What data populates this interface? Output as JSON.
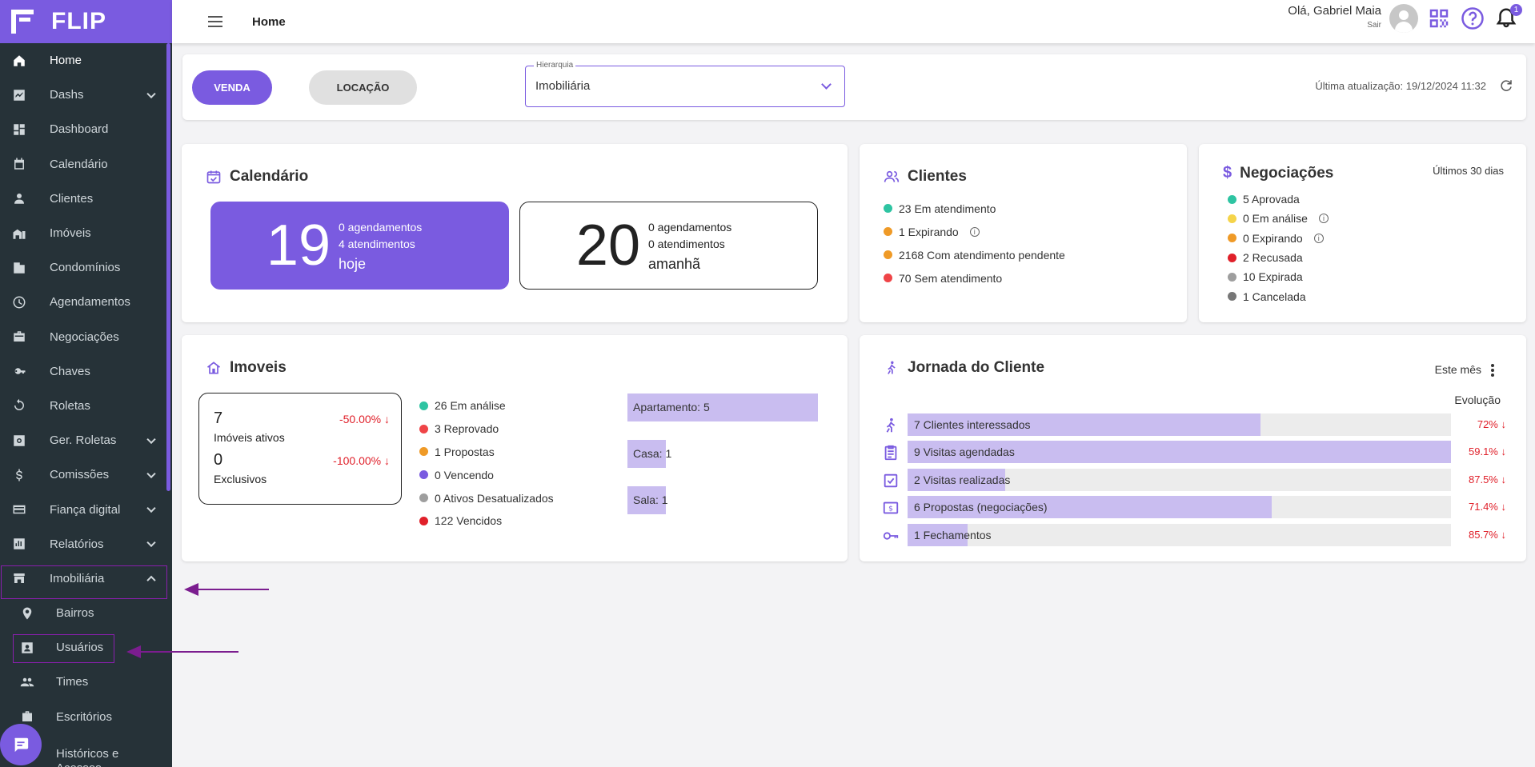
{
  "app": {
    "name": "FLIP"
  },
  "sidebar": {
    "items": [
      {
        "label": "Home",
        "icon": "home-icon"
      },
      {
        "label": "Dashs",
        "icon": "chart-icon"
      },
      {
        "label": "Dashboard",
        "icon": "dashboard-icon"
      },
      {
        "label": "Calendário",
        "icon": "calendar-icon"
      },
      {
        "label": "Clientes",
        "icon": "person-icon"
      },
      {
        "label": "Imóveis",
        "icon": "buildings-icon"
      },
      {
        "label": "Condomínios",
        "icon": "condo-icon"
      },
      {
        "label": "Agendamentos",
        "icon": "clock-icon"
      },
      {
        "label": "Negociações",
        "icon": "briefcase-icon"
      },
      {
        "label": "Chaves",
        "icon": "key-icon"
      },
      {
        "label": "Roletas",
        "icon": "cycle-icon"
      },
      {
        "label": "Ger. Roletas",
        "icon": "settings-box-icon"
      },
      {
        "label": "Comissões",
        "icon": "dollar-icon"
      },
      {
        "label": "Fiança digital",
        "icon": "card-icon"
      },
      {
        "label": "Relatórios",
        "icon": "report-icon"
      },
      {
        "label": "Imobiliária",
        "icon": "store-icon"
      },
      {
        "label": "Bairros",
        "icon": "pin-icon"
      },
      {
        "label": "Usuários",
        "icon": "contact-card-icon"
      },
      {
        "label": "Times",
        "icon": "group-icon"
      },
      {
        "label": "Escritórios",
        "icon": "bag-icon"
      },
      {
        "label": "Históricos e Acessos",
        "icon": "history-icon"
      }
    ]
  },
  "topbar": {
    "title": "Home",
    "greeting": "Olá, Gabriel Maia",
    "logout": "Sair",
    "notifications_count": "1"
  },
  "filter": {
    "venda": "VENDA",
    "locacao": "LOCAÇÃO",
    "hierarchy_label": "Hierarquia",
    "hierarchy_value": "Imobiliária",
    "last_update": "Última atualização: 19/12/2024 11:32"
  },
  "calendar": {
    "title": "Calendário",
    "today": {
      "day": "19",
      "appointments": "0 agendamentos",
      "services": "4 atendimentos",
      "when": "hoje"
    },
    "tomorrow": {
      "day": "20",
      "appointments": "0 agendamentos",
      "services": "0 atendimentos",
      "when": "amanhã"
    }
  },
  "clients": {
    "title": "Clientes",
    "items": [
      {
        "label": "23 Em atendimento",
        "color": "#2ec4a2"
      },
      {
        "label": "1 Expirando",
        "color": "#ef9a27"
      },
      {
        "label": "2168 Com atendimento pendente",
        "color": "#ef9a27"
      },
      {
        "label": "70 Sem atendimento",
        "color": "#ef4447"
      }
    ]
  },
  "negotiations": {
    "title": "Negociações",
    "period": "Últimos 30 dias",
    "items": [
      {
        "label": "5 Aprovada",
        "color": "#2ec4a2"
      },
      {
        "label": "0 Em análise",
        "color": "#f5d44a"
      },
      {
        "label": "0 Expirando",
        "color": "#ef9a27"
      },
      {
        "label": "2 Recusada",
        "color": "#e0202a"
      },
      {
        "label": "10 Expirada",
        "color": "#9e9e9e"
      },
      {
        "label": "1 Cancelada",
        "color": "#777777"
      }
    ]
  },
  "properties": {
    "title": "Imoveis",
    "active": {
      "value": "7",
      "label": "Imóveis ativos",
      "change": "-50.00%"
    },
    "exclusive": {
      "value": "0",
      "label": "Exclusivos",
      "change": "-100.00%"
    },
    "status": [
      {
        "label": "26 Em análise",
        "color": "#2ec4a2"
      },
      {
        "label": "3 Reprovado",
        "color": "#ef4447"
      },
      {
        "label": "1 Propostas",
        "color": "#ef9a27"
      },
      {
        "label": "0 Vencendo",
        "color": "#7a5be0"
      },
      {
        "label": "0 Ativos Desatualizados",
        "color": "#9e9e9e"
      },
      {
        "label": "122 Vencidos",
        "color": "#e0202a"
      }
    ],
    "types": [
      {
        "label": "Apartamento: 5",
        "value": 5
      },
      {
        "label": "Casa: 1",
        "value": 1
      },
      {
        "label": "Sala: 1",
        "value": 1
      }
    ]
  },
  "journey": {
    "title": "Jornada do Cliente",
    "period": "Este mês",
    "evolution_label": "Evolução",
    "rows": [
      {
        "label": "7 Clientes interessados",
        "pct": "72%",
        "fill": 0.65,
        "icon": "walker-icon"
      },
      {
        "label": "9 Visitas agendadas",
        "pct": "59.1%",
        "fill": 1.0,
        "icon": "clipboard-icon"
      },
      {
        "label": "2 Visitas realizadas",
        "pct": "87.5%",
        "fill": 0.18,
        "icon": "check-box-icon"
      },
      {
        "label": "6 Propostas (negociações)",
        "pct": "71.4%",
        "fill": 0.67,
        "icon": "money-icon"
      },
      {
        "label": "1 Fechamentos",
        "pct": "85.7%",
        "fill": 0.11,
        "icon": "key-icon"
      }
    ]
  }
}
